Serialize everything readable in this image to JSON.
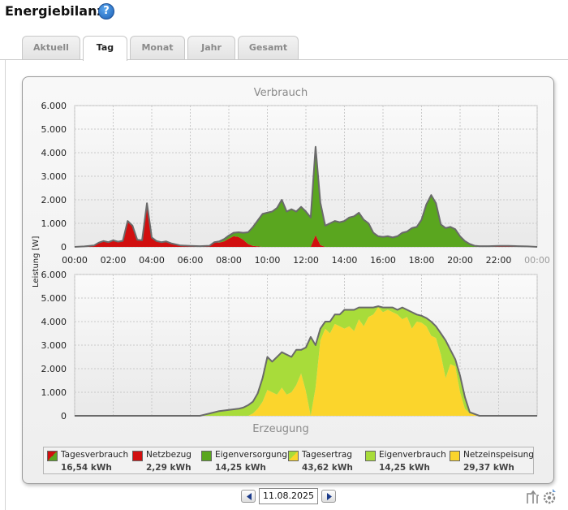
{
  "page": {
    "title": "Energiebilanz",
    "help_icon": "question-circle-icon"
  },
  "tabs": [
    {
      "label": "Aktuell",
      "active": false
    },
    {
      "label": "Tag",
      "active": true
    },
    {
      "label": "Monat",
      "active": false
    },
    {
      "label": "Jahr",
      "active": false
    },
    {
      "label": "Gesamt",
      "active": false
    }
  ],
  "colors": {
    "netzbezug": "#d10f0f",
    "eigenversorgung": "#5aa61f",
    "eigenverbrauch": "#a8dc3a",
    "netzeinspeisung": "#fbd52c",
    "total_line": "#6a6a6a",
    "grid": "#c9c9c9"
  },
  "chart_data": [
    {
      "type": "area",
      "title": "Verbrauch",
      "ylabel": "Leistung [W]",
      "ylim": [
        0,
        6000
      ],
      "y_ticks": [
        "0",
        "1.000",
        "2.000",
        "3.000",
        "4.000",
        "5.000",
        "6.000"
      ],
      "x_ticks": [
        "00:00",
        "02:00",
        "04:00",
        "06:00",
        "08:00",
        "10:00",
        "12:00",
        "14:00",
        "16:00",
        "18:00",
        "20:00",
        "22:00",
        "00:00"
      ],
      "x_hours": [
        0,
        0.5,
        1,
        1.25,
        1.5,
        1.75,
        2,
        2.25,
        2.5,
        2.75,
        3,
        3.25,
        3.5,
        3.75,
        4,
        4.25,
        4.5,
        4.75,
        5,
        5.5,
        6,
        6.5,
        7,
        7.25,
        7.5,
        7.75,
        8,
        8.25,
        8.5,
        8.75,
        9,
        9.25,
        9.5,
        9.75,
        10,
        10.25,
        10.5,
        10.75,
        11,
        11.25,
        11.5,
        11.75,
        12,
        12.25,
        12.5,
        12.75,
        13,
        13.25,
        13.5,
        13.75,
        14,
        14.25,
        14.5,
        14.75,
        15,
        15.25,
        15.5,
        15.75,
        16,
        16.25,
        16.5,
        16.75,
        17,
        17.25,
        17.5,
        17.75,
        18,
        18.25,
        18.5,
        18.75,
        19,
        19.25,
        19.5,
        19.75,
        20,
        20.25,
        20.5,
        20.75,
        21,
        21.5,
        22,
        22.5,
        23,
        23.5,
        24
      ],
      "series": [
        {
          "name": "Netzbezug",
          "values": [
            0,
            20,
            60,
            180,
            250,
            200,
            280,
            220,
            260,
            1100,
            900,
            300,
            280,
            1850,
            400,
            250,
            200,
            230,
            150,
            60,
            40,
            30,
            50,
            200,
            180,
            230,
            350,
            450,
            420,
            300,
            120,
            40,
            20,
            0,
            0,
            0,
            0,
            0,
            0,
            0,
            0,
            0,
            0,
            0,
            500,
            80,
            0,
            0,
            0,
            0,
            0,
            0,
            0,
            0,
            0,
            0,
            0,
            0,
            0,
            0,
            0,
            0,
            0,
            0,
            0,
            0,
            0,
            0,
            0,
            0,
            0,
            0,
            0,
            0,
            0,
            0,
            0,
            0,
            0,
            20,
            40,
            40,
            30,
            20,
            0
          ]
        },
        {
          "name": "Eigenversorgung",
          "values": [
            0,
            0,
            0,
            0,
            0,
            0,
            0,
            0,
            0,
            0,
            0,
            0,
            0,
            0,
            0,
            0,
            0,
            0,
            0,
            0,
            0,
            0,
            0,
            0,
            50,
            100,
            130,
            150,
            200,
            300,
            500,
            800,
            1100,
            1400,
            1450,
            1500,
            1650,
            2000,
            1500,
            1600,
            1500,
            1700,
            1500,
            1250,
            3750,
            1800,
            900,
            1000,
            1100,
            1050,
            1100,
            1250,
            1300,
            1450,
            1150,
            1000,
            600,
            450,
            420,
            450,
            400,
            450,
            600,
            650,
            800,
            850,
            1150,
            1800,
            2200,
            1850,
            950,
            800,
            850,
            750,
            450,
            250,
            120,
            50,
            30,
            10,
            0,
            0,
            0,
            0,
            0
          ]
        }
      ],
      "total_line": true
    },
    {
      "type": "area",
      "title": "Erzeugung",
      "ylabel": "Leistung [W]",
      "ylim": [
        0,
        6000
      ],
      "y_ticks": [
        "0",
        "1.000",
        "2.000",
        "3.000",
        "4.000",
        "5.000",
        "6.000"
      ],
      "x_hours": [
        0,
        6.5,
        7,
        7.5,
        8,
        8.5,
        8.75,
        9,
        9.25,
        9.5,
        9.75,
        10,
        10.25,
        10.5,
        10.75,
        11,
        11.25,
        11.5,
        11.75,
        12,
        12.25,
        12.5,
        12.75,
        13,
        13.25,
        13.5,
        13.75,
        14,
        14.25,
        14.5,
        14.75,
        15,
        15.25,
        15.5,
        15.75,
        16,
        16.25,
        16.5,
        16.75,
        17,
        17.25,
        17.5,
        17.75,
        18,
        18.25,
        18.5,
        18.75,
        19,
        19.25,
        19.5,
        19.75,
        20,
        20.25,
        20.5,
        21,
        24
      ],
      "series": [
        {
          "name": "Netzeinspeisung",
          "values": [
            0,
            0,
            0,
            0,
            0,
            0,
            0,
            0,
            100,
            300,
            600,
            1100,
            1000,
            900,
            1200,
            900,
            1000,
            1300,
            1800,
            1050,
            0,
            1200,
            3200,
            3700,
            3500,
            3900,
            3800,
            3700,
            3800,
            3600,
            4100,
            3800,
            4200,
            4300,
            4600,
            4400,
            4500,
            4400,
            4300,
            4100,
            4200,
            3700,
            4000,
            3950,
            3800,
            3400,
            3300,
            2600,
            1600,
            2200,
            2100,
            1000,
            300,
            100,
            0,
            0
          ]
        },
        {
          "name": "Eigenverbrauch",
          "values": [
            0,
            0,
            100,
            200,
            250,
            300,
            350,
            450,
            500,
            650,
            1000,
            1400,
            1300,
            1600,
            1500,
            1700,
            1500,
            1500,
            1000,
            1850,
            3350,
            1800,
            500,
            300,
            500,
            400,
            500,
            800,
            700,
            900,
            500,
            800,
            400,
            300,
            50,
            200,
            100,
            200,
            200,
            500,
            300,
            700,
            300,
            300,
            350,
            600,
            500,
            900,
            1600,
            600,
            300,
            700,
            500,
            50,
            0,
            0
          ]
        }
      ],
      "total_line": true
    }
  ],
  "legend": [
    {
      "label": "Tagesverbrauch",
      "value": "16,54 kWh",
      "swatch": "split-red-green"
    },
    {
      "label": "Netzbezug",
      "value": "2,29 kWh",
      "swatch": "red"
    },
    {
      "label": "Eigenversorgung",
      "value": "14,25 kWh",
      "swatch": "green"
    },
    {
      "label": "Tagesertrag",
      "value": "43,62 kWh",
      "swatch": "split-lightgreen-yellow"
    },
    {
      "label": "Eigenverbrauch",
      "value": "14,25 kWh",
      "swatch": "lightgreen"
    },
    {
      "label": "Netzeinspeisung",
      "value": "29,37 kWh",
      "swatch": "yellow"
    }
  ],
  "date_nav": {
    "date": "11.08.2025",
    "prev_icon": "triangle-left-icon",
    "next_icon": "triangle-right-icon"
  },
  "corner_icons": [
    "export-icon",
    "settings-icon"
  ]
}
